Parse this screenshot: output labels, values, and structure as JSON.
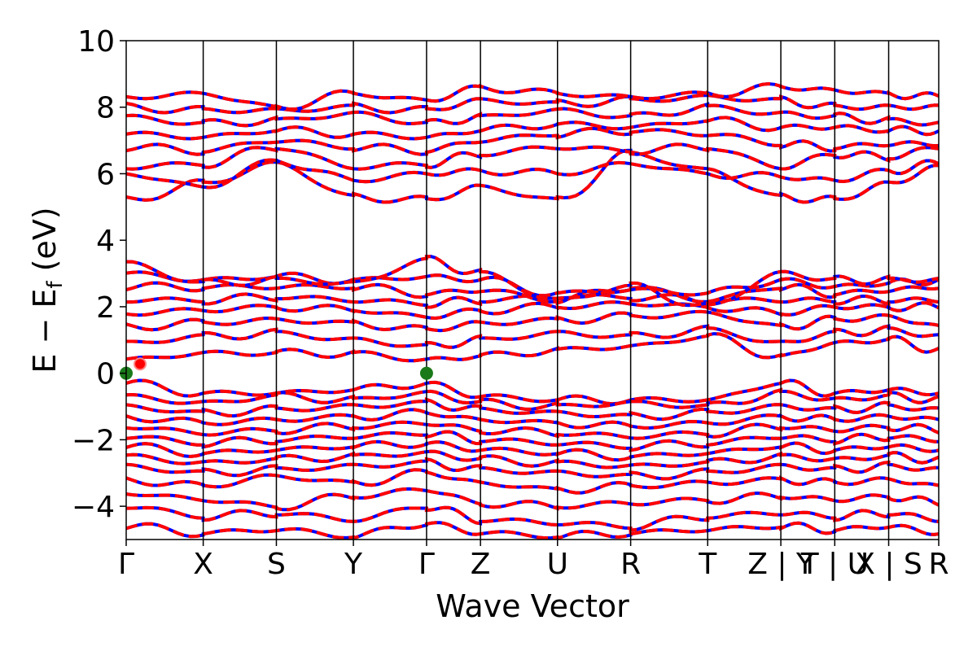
{
  "chart_data": {
    "type": "line",
    "xlabel": "Wave Vector",
    "ylabel": "E − E_f (eV)",
    "ylabel_parts": {
      "main": "E − E",
      "sub": "f",
      "tail": " (eV)"
    },
    "ylim": [
      -5,
      10
    ],
    "yticks": [
      -4,
      -2,
      0,
      2,
      4,
      6,
      8,
      10
    ],
    "ytick_labels": [
      "−4",
      "−2",
      "0",
      "2",
      "4",
      "6",
      "8",
      "10"
    ],
    "xlim": [
      0,
      10.55
    ],
    "kpath_positions": [
      0,
      1.0,
      1.95,
      2.95,
      3.9,
      4.6,
      5.6,
      6.55,
      7.55,
      8.5,
      9.2,
      9.9,
      10.55
    ],
    "kpath_labels": [
      "Γ",
      "X",
      "S",
      "Y",
      "Γ",
      "Z",
      "U",
      "R",
      "T",
      "Z | Y",
      "T | U",
      "X | S",
      "R"
    ],
    "kpath_label_positions": [
      0,
      1.0,
      1.95,
      2.95,
      3.9,
      4.6,
      5.6,
      6.55,
      7.55,
      8.5,
      9.2,
      9.9,
      10.55
    ],
    "kpath_labels_display": [
      "Γ",
      "X",
      "S",
      "Y",
      "Γ",
      "Z",
      "U",
      "R",
      "T",
      "Z",
      "|",
      "Y",
      "|",
      "U",
      "X",
      "|",
      "S",
      "R"
    ],
    "colors": {
      "spin_up": "#ff0000",
      "spin_down": "#0000ff",
      "gap_marker": "#1a7a1a",
      "cbm_marker": "#ff0000",
      "frame": "#000000"
    },
    "series": [
      {
        "spin": "up",
        "bands_hint": "valence band cluster between -5 and -0.2 eV",
        "band_energies_at_kpoints": [
          [
            -0.3,
            -0.6,
            -0.6,
            -0.5,
            -0.3,
            -0.7,
            -0.8,
            -0.8,
            -0.8,
            -0.3,
            -0.6,
            -0.5,
            -0.6
          ],
          [
            -0.7,
            -0.9,
            -0.7,
            -0.8,
            -0.6,
            -0.9,
            -1.0,
            -0.9,
            -1.0,
            -0.6,
            -0.8,
            -0.7,
            -0.8
          ],
          [
            -1.0,
            -1.2,
            -1.1,
            -1.0,
            -0.9,
            -1.1,
            -1.2,
            -1.3,
            -1.2,
            -1.0,
            -1.1,
            -1.0,
            -1.1
          ],
          [
            -1.3,
            -1.5,
            -1.4,
            -1.3,
            -1.2,
            -1.4,
            -1.5,
            -1.6,
            -1.5,
            -1.3,
            -1.4,
            -1.3,
            -1.4
          ],
          [
            -1.6,
            -1.8,
            -1.7,
            -1.6,
            -1.5,
            -1.7,
            -1.8,
            -1.9,
            -1.8,
            -1.6,
            -1.7,
            -1.6,
            -1.7
          ],
          [
            -1.9,
            -2.1,
            -2.0,
            -1.9,
            -1.8,
            -2.0,
            -2.1,
            -2.2,
            -2.1,
            -1.9,
            -2.0,
            -1.9,
            -2.0
          ],
          [
            -2.2,
            -2.4,
            -2.3,
            -2.2,
            -2.1,
            -2.3,
            -2.4,
            -2.5,
            -2.4,
            -2.2,
            -2.3,
            -2.2,
            -2.3
          ],
          [
            -2.5,
            -2.7,
            -2.6,
            -2.5,
            -2.4,
            -2.6,
            -2.7,
            -2.8,
            -2.7,
            -2.5,
            -2.6,
            -2.5,
            -2.6
          ],
          [
            -2.8,
            -3.0,
            -2.9,
            -2.8,
            -2.7,
            -2.9,
            -3.0,
            -3.1,
            -3.0,
            -2.8,
            -2.9,
            -2.8,
            -2.9
          ],
          [
            -3.2,
            -3.4,
            -3.1,
            -3.3,
            -3.0,
            -3.3,
            -3.5,
            -3.4,
            -3.3,
            -3.2,
            -3.3,
            -3.2,
            -3.4
          ],
          [
            -3.6,
            -3.8,
            -4.0,
            -3.7,
            -3.5,
            -3.9,
            -4.0,
            -3.9,
            -3.8,
            -3.7,
            -3.8,
            -3.7,
            -3.9
          ],
          [
            -4.0,
            -4.3,
            -4.2,
            -4.4,
            -4.0,
            -4.4,
            -4.5,
            -4.6,
            -4.3,
            -4.2,
            -4.3,
            -4.2,
            -4.4
          ],
          [
            -4.6,
            -4.8,
            -4.7,
            -4.9,
            -4.5,
            -4.8,
            -4.9,
            -4.8,
            -4.7,
            -4.6,
            -4.7,
            -4.6,
            -4.8
          ]
        ]
      },
      {
        "spin": "up",
        "bands_hint": "lower conduction band group between 0.3 and 3.4 eV",
        "band_energies_at_kpoints": [
          [
            0.4,
            0.6,
            0.6,
            0.6,
            0.4,
            0.5,
            0.7,
            0.8,
            1.1,
            0.5,
            0.9,
            1.0,
            0.7
          ],
          [
            0.9,
            1.1,
            1.2,
            1.0,
            0.8,
            1.0,
            1.2,
            1.1,
            1.3,
            0.9,
            1.2,
            1.3,
            1.1
          ],
          [
            1.4,
            1.5,
            1.6,
            1.5,
            1.3,
            1.5,
            1.6,
            1.7,
            1.8,
            1.4,
            1.6,
            1.7,
            1.4
          ],
          [
            1.8,
            1.9,
            2.0,
            1.9,
            1.7,
            1.9,
            2.0,
            2.1,
            2.0,
            1.8,
            2.0,
            2.0,
            2.0
          ],
          [
            2.2,
            2.2,
            2.3,
            2.2,
            2.1,
            2.2,
            2.3,
            2.3,
            2.2,
            2.2,
            2.2,
            2.2,
            2.2
          ],
          [
            2.6,
            2.6,
            2.6,
            2.6,
            2.4,
            2.5,
            2.2,
            2.6,
            2.2,
            2.6,
            2.4,
            2.5,
            2.6
          ],
          [
            3.0,
            2.8,
            2.9,
            2.8,
            2.9,
            2.8,
            2.4,
            2.5,
            2.4,
            2.8,
            2.6,
            2.7,
            2.8
          ],
          [
            3.3,
            2.7,
            2.8,
            2.7,
            3.4,
            3.0,
            2.2,
            2.6,
            2.0,
            3.0,
            2.8,
            2.8,
            2.8
          ]
        ]
      },
      {
        "spin": "up",
        "bands_hint": "upper conduction band group between 5.2 and 8.8 eV",
        "band_energies_at_kpoints": [
          [
            5.2,
            5.7,
            6.3,
            5.3,
            5.2,
            5.6,
            5.2,
            6.6,
            6.1,
            5.3,
            5.2,
            5.7,
            6.2
          ],
          [
            6.0,
            5.6,
            6.4,
            5.8,
            6.0,
            6.1,
            6.0,
            6.3,
            6.0,
            5.9,
            5.8,
            6.1,
            6.3
          ],
          [
            6.2,
            6.3,
            6.8,
            6.2,
            6.3,
            6.6,
            6.8,
            6.7,
            6.8,
            6.2,
            6.6,
            6.5,
            6.8
          ],
          [
            6.8,
            6.7,
            7.0,
            6.8,
            6.7,
            7.0,
            7.2,
            7.3,
            7.2,
            6.9,
            6.8,
            6.9,
            6.9
          ],
          [
            7.2,
            7.1,
            7.3,
            7.2,
            7.1,
            7.3,
            7.5,
            7.4,
            7.6,
            7.4,
            7.4,
            7.3,
            7.3
          ],
          [
            7.7,
            7.5,
            7.6,
            7.8,
            7.5,
            7.7,
            7.9,
            7.7,
            8.0,
            7.8,
            7.7,
            7.6,
            7.5
          ],
          [
            8.0,
            7.9,
            7.9,
            8.0,
            7.9,
            8.2,
            8.1,
            8.2,
            8.3,
            8.2,
            8.0,
            8.0,
            8.0
          ],
          [
            8.3,
            8.4,
            8.0,
            8.4,
            8.2,
            8.6,
            8.4,
            8.3,
            8.4,
            8.6,
            8.5,
            8.4,
            8.3
          ]
        ]
      }
    ],
    "markers": [
      {
        "kind": "vbm",
        "x": 0,
        "y": 0.0
      },
      {
        "kind": "vbm",
        "x": 3.9,
        "y": 0.0
      },
      {
        "kind": "cbm",
        "x": 0.18,
        "y": 0.28
      }
    ]
  }
}
